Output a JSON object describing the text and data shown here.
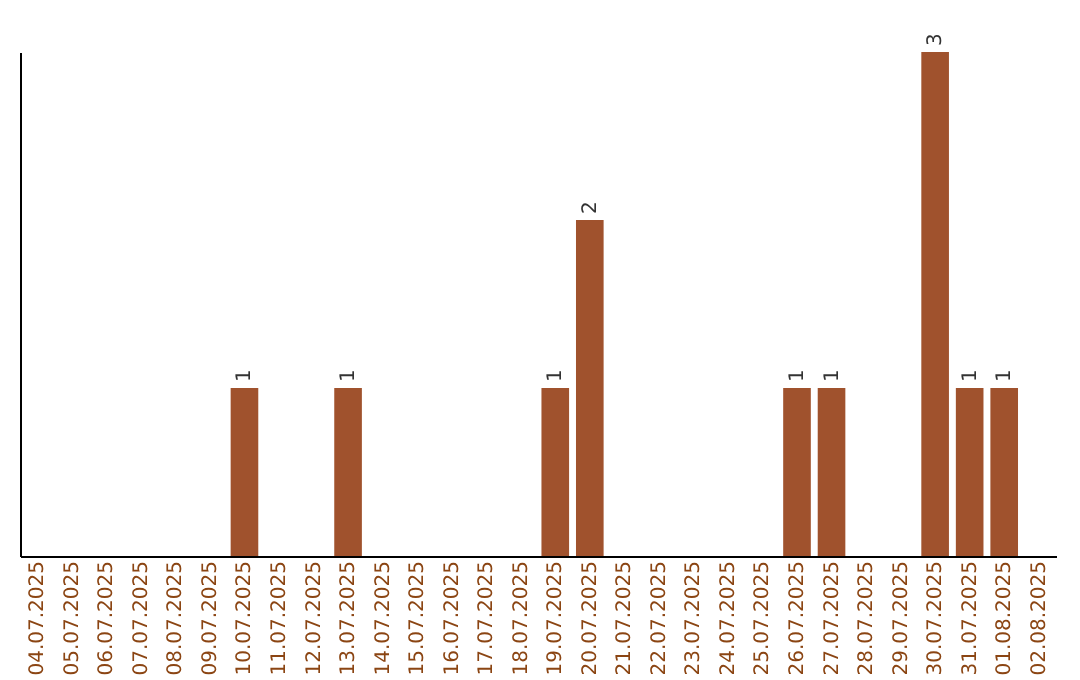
{
  "chart_data": {
    "type": "bar",
    "categories": [
      "04.07.2025",
      "05.07.2025",
      "06.07.2025",
      "07.07.2025",
      "08.07.2025",
      "09.07.2025",
      "10.07.2025",
      "11.07.2025",
      "12.07.2025",
      "13.07.2025",
      "14.07.2025",
      "15.07.2025",
      "16.07.2025",
      "17.07.2025",
      "18.07.2025",
      "19.07.2025",
      "20.07.2025",
      "21.07.2025",
      "22.07.2025",
      "23.07.2025",
      "24.07.2025",
      "25.07.2025",
      "26.07.2025",
      "27.07.2025",
      "28.07.2025",
      "29.07.2025",
      "30.07.2025",
      "31.07.2025",
      "01.08.2025",
      "02.08.2025"
    ],
    "values": [
      0,
      0,
      0,
      0,
      0,
      0,
      1,
      0,
      0,
      1,
      0,
      0,
      0,
      0,
      0,
      1,
      2,
      0,
      0,
      0,
      0,
      0,
      1,
      1,
      0,
      0,
      3,
      1,
      1,
      0
    ],
    "value_labels": [
      null,
      null,
      null,
      null,
      null,
      null,
      "1",
      null,
      null,
      "1",
      null,
      null,
      null,
      null,
      null,
      "1",
      "2",
      null,
      null,
      null,
      null,
      null,
      "1",
      "1",
      null,
      null,
      "3",
      "1",
      "1",
      null
    ],
    "color": "#a0522d",
    "tick_labels": "x",
    "grid": false
  }
}
